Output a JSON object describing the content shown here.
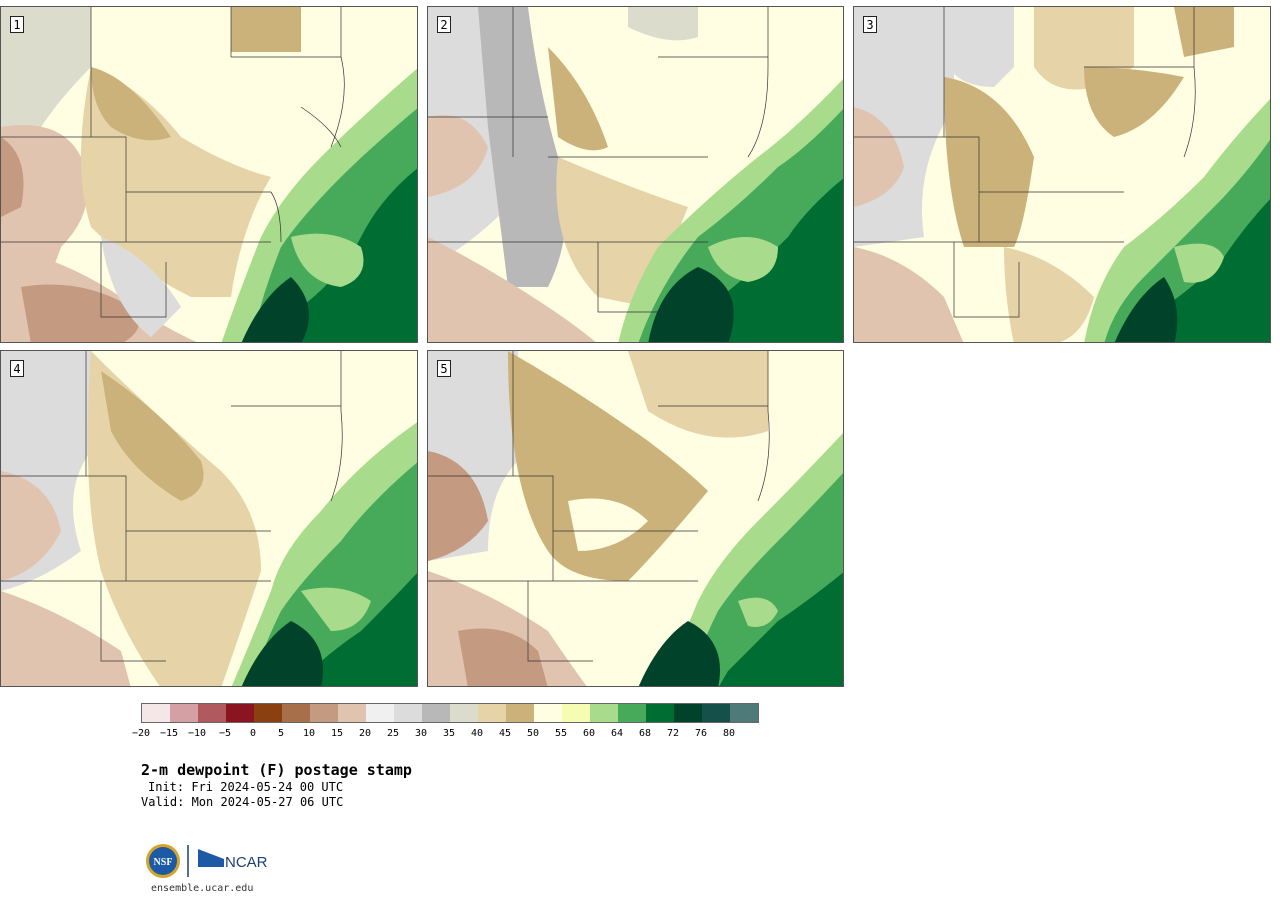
{
  "panels": [
    {
      "label": "1"
    },
    {
      "label": "2"
    },
    {
      "label": "3"
    },
    {
      "label": "4"
    },
    {
      "label": "5"
    }
  ],
  "colorbar": {
    "colors": [
      "#f5e6e8",
      "#d4a0a4",
      "#b05a60",
      "#8a1520",
      "#8a4010",
      "#a8704a",
      "#c49a80",
      "#e0c4b0",
      "#f0f0f0",
      "#dcdcdc",
      "#b8b8b8",
      "#dcdccc",
      "#e6d4a8",
      "#cbb27a",
      "#fffee2",
      "#f6fcb2",
      "#a8dc8c",
      "#46aa5a",
      "#006e32",
      "#00432a",
      "#15504a",
      "#4f7a7a"
    ],
    "ticks": [
      "−20",
      "−15",
      "−10",
      "−5",
      "0",
      "5",
      "10",
      "15",
      "20",
      "25",
      "30",
      "35",
      "40",
      "45",
      "50",
      "55",
      "60",
      "64",
      "68",
      "72",
      "76",
      "80"
    ]
  },
  "title": "2-m dewpoint (F) postage stamp",
  "init": "Init: Fri 2024-05-24 00 UTC",
  "valid": "Valid: Mon 2024-05-27 06 UTC",
  "logos": {
    "nsf": "NSF",
    "ncar": "NCAR"
  },
  "url": "ensemble.ucar.edu"
}
